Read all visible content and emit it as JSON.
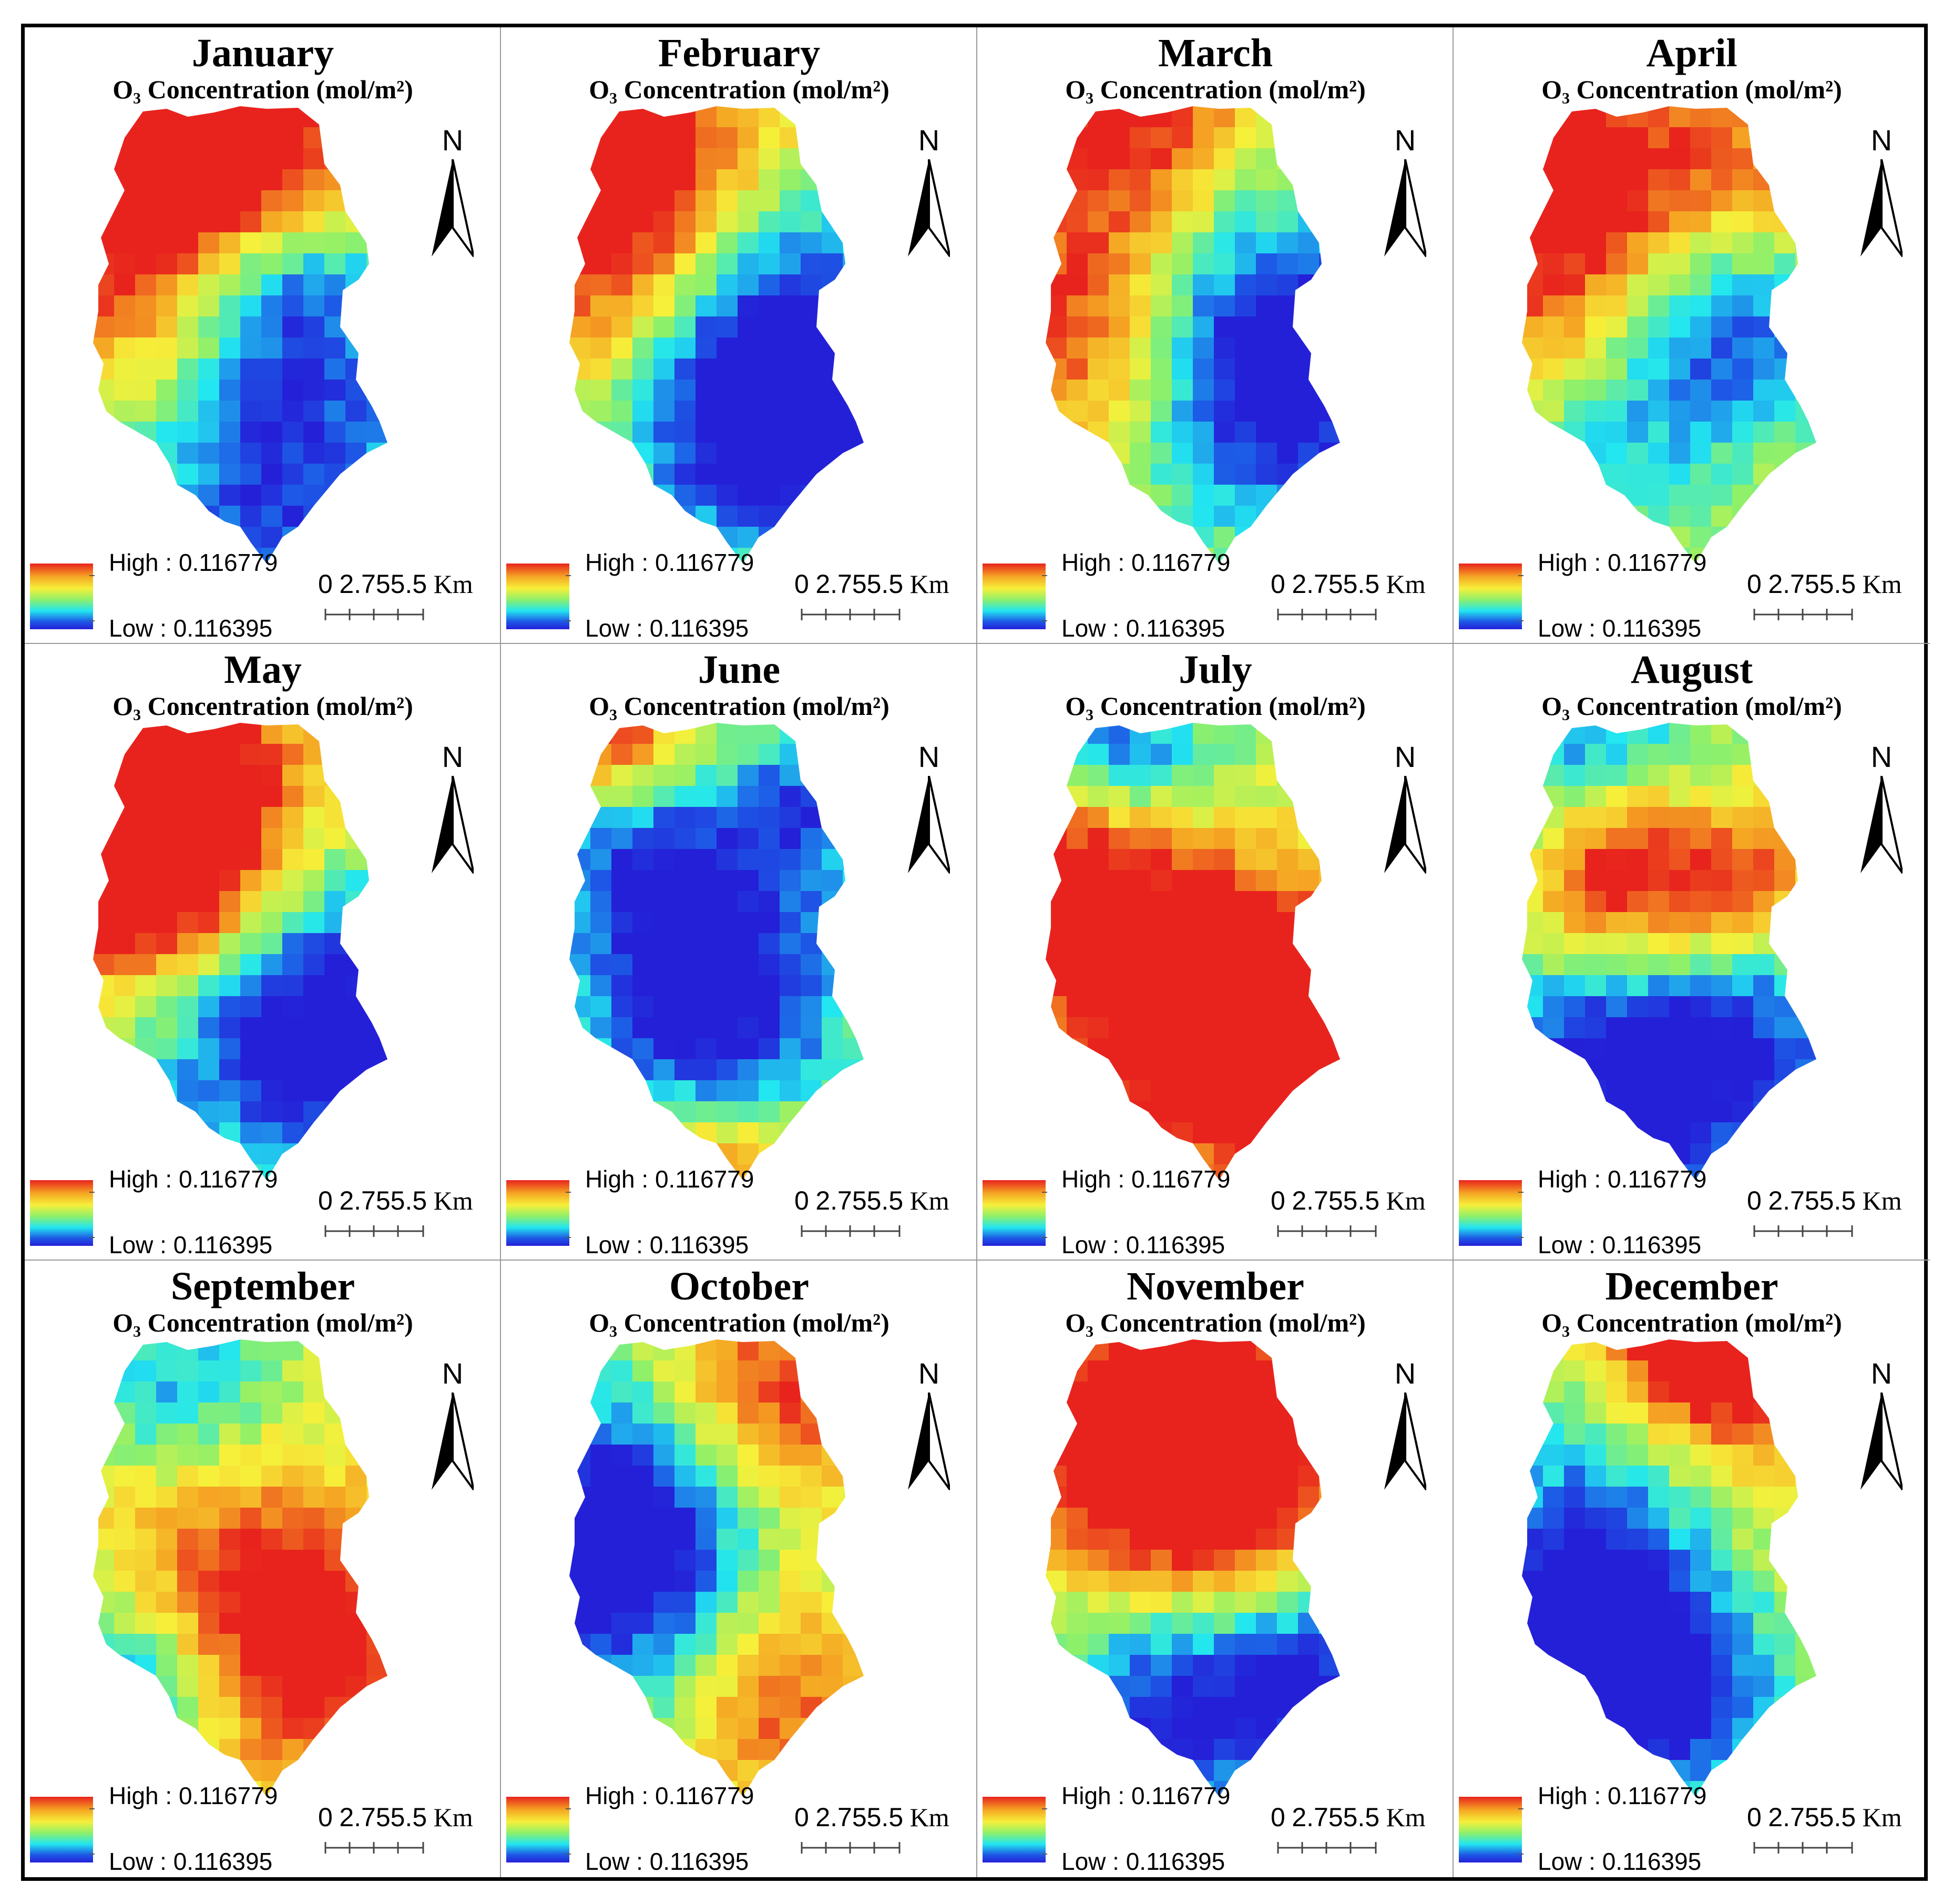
{
  "subtitle": "O₃ Concentration (mol/m²)",
  "legend": {
    "high": "High : 0.116779",
    "low": "Low : 0.116395"
  },
  "north_label": "N",
  "scale": {
    "zero": "0",
    "numbers": "2.755.5",
    "unit": "Km"
  },
  "colors": {
    "high": "#e8231d",
    "mid": "#f6f03a",
    "low": "#2420d8"
  },
  "panels": [
    {
      "month": "January"
    },
    {
      "month": "February"
    },
    {
      "month": "March"
    },
    {
      "month": "April"
    },
    {
      "month": "May"
    },
    {
      "month": "June"
    },
    {
      "month": "July"
    },
    {
      "month": "August"
    },
    {
      "month": "September"
    },
    {
      "month": "October"
    },
    {
      "month": "November"
    },
    {
      "month": "December"
    }
  ]
}
